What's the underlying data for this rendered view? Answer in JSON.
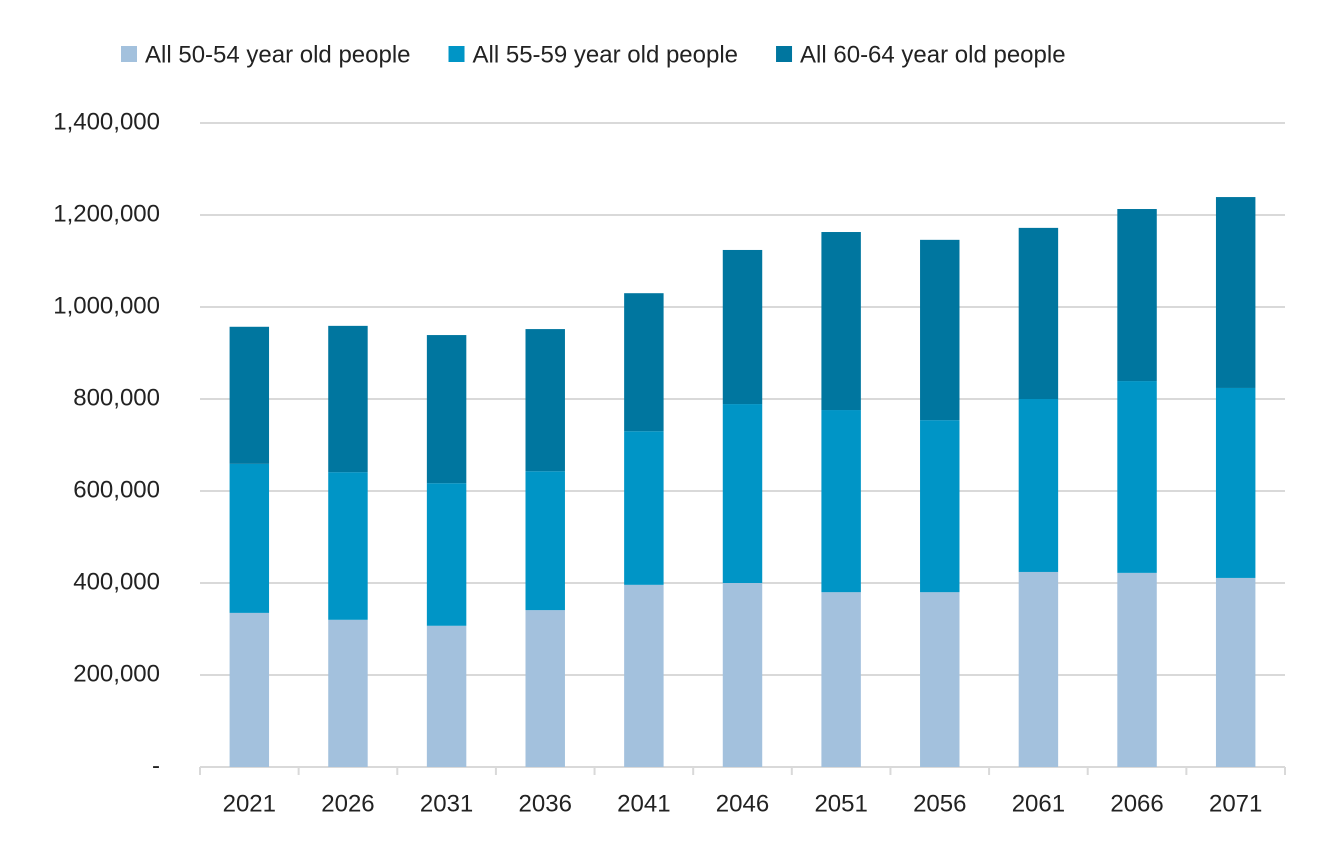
{
  "chart_data": {
    "type": "stacked_bar",
    "categories": [
      "2021",
      "2026",
      "2031",
      "2036",
      "2041",
      "2046",
      "2051",
      "2056",
      "2061",
      "2066",
      "2071"
    ],
    "series": [
      {
        "name": "All 50-54 year old people",
        "color": "#a3c1dd",
        "values": [
          335000,
          320000,
          307000,
          341000,
          396000,
          400000,
          380000,
          380000,
          424000,
          422000,
          411000
        ]
      },
      {
        "name": "All 55-59 year old people",
        "color": "#0095c6",
        "values": [
          324000,
          321000,
          310000,
          302000,
          334000,
          389000,
          396000,
          374000,
          376000,
          417000,
          413000
        ]
      },
      {
        "name": "All 60-64 year old people",
        "color": "#00769f",
        "values": [
          298000,
          318000,
          322000,
          309000,
          300000,
          335000,
          387000,
          392000,
          372000,
          374000,
          415000
        ]
      }
    ],
    "ylim": [
      0,
      1400000
    ],
    "yticks": [
      {
        "value": 0,
        "label": "-"
      },
      {
        "value": 200000,
        "label": "200,000"
      },
      {
        "value": 400000,
        "label": "400,000"
      },
      {
        "value": 600000,
        "label": "600,000"
      },
      {
        "value": 800000,
        "label": "800,000"
      },
      {
        "value": 1000000,
        "label": "1,000,000"
      },
      {
        "value": 1200000,
        "label": "1,200,000"
      },
      {
        "value": 1400000,
        "label": "1,400,000"
      }
    ],
    "grid": true,
    "legend": "top"
  }
}
